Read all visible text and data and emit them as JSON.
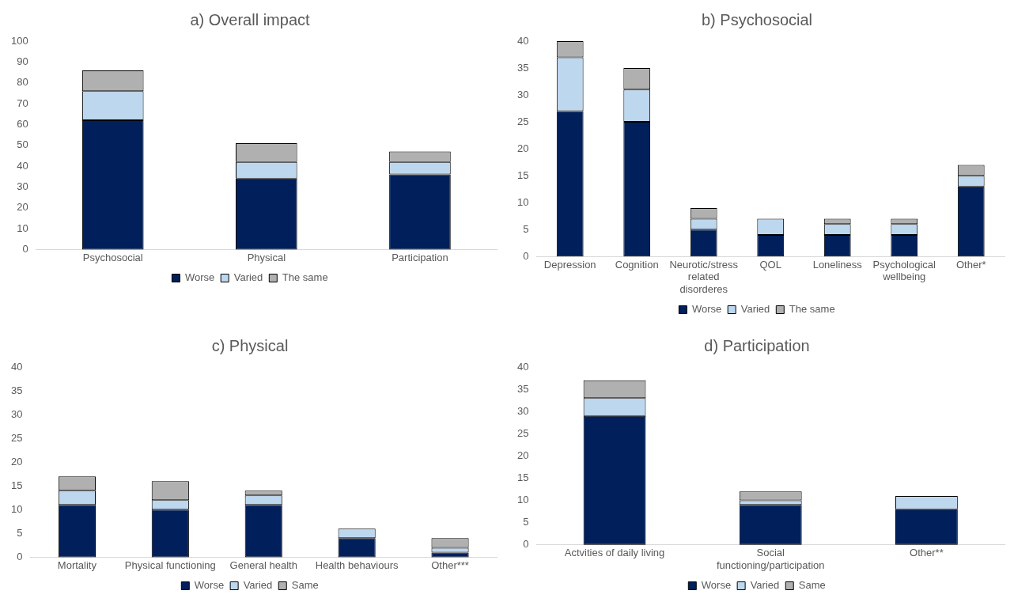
{
  "chart_data": [
    {
      "type": "bar",
      "title": "a) Overall impact",
      "categories": [
        "Psychosocial",
        "Physical",
        "Participation"
      ],
      "stacked": true,
      "grid": false,
      "legend": "bottom",
      "ylim": [
        0,
        100
      ],
      "yticks": [
        0,
        10,
        20,
        30,
        40,
        50,
        60,
        70,
        80,
        90,
        100
      ],
      "series": [
        {
          "name": "Worse",
          "color": "#001f5b",
          "values": [
            62,
            34,
            36
          ]
        },
        {
          "name": "Varied",
          "color": "#bdd7ee",
          "values": [
            14,
            8,
            6
          ]
        },
        {
          "name": "The same",
          "color": "#b0b0b0",
          "values": [
            10,
            9,
            5
          ]
        }
      ]
    },
    {
      "type": "bar",
      "title": "b) Psychosocial",
      "categories": [
        "Depression",
        "Cognition",
        "Neurotic/stress related disorderes",
        "QOL",
        "Loneliness",
        "Psychological wellbeing",
        "Other*"
      ],
      "stacked": true,
      "grid": false,
      "legend": "bottom",
      "ylim": [
        0,
        40
      ],
      "yticks": [
        0,
        5,
        10,
        15,
        20,
        25,
        30,
        35,
        40
      ],
      "series": [
        {
          "name": "Worse",
          "color": "#001f5b",
          "values": [
            27,
            25,
            5,
            4,
            4,
            4,
            13
          ]
        },
        {
          "name": "Varied",
          "color": "#bdd7ee",
          "values": [
            10,
            6,
            2,
            3,
            2,
            2,
            2
          ]
        },
        {
          "name": "The same",
          "color": "#b0b0b0",
          "values": [
            3,
            4,
            2,
            0,
            1,
            1,
            2
          ]
        }
      ]
    },
    {
      "type": "bar",
      "title": "c) Physical",
      "categories": [
        "Mortality",
        "Physical functioning",
        "General health",
        "Health behaviours",
        "Other***"
      ],
      "stacked": true,
      "grid": false,
      "legend": "bottom",
      "ylim": [
        0,
        40
      ],
      "yticks": [
        0,
        5,
        10,
        15,
        20,
        25,
        30,
        35,
        40
      ],
      "series": [
        {
          "name": "Worse",
          "color": "#001f5b",
          "values": [
            11,
            10,
            11,
            4,
            1
          ]
        },
        {
          "name": "Varied",
          "color": "#bdd7ee",
          "values": [
            3,
            2,
            2,
            2,
            1
          ]
        },
        {
          "name": "Same",
          "color": "#b0b0b0",
          "values": [
            3,
            4,
            1,
            0,
            2
          ]
        }
      ]
    },
    {
      "type": "bar",
      "title": "d) Participation",
      "categories": [
        "Actvities of daily living",
        "Social functioning/participation",
        "Other**"
      ],
      "stacked": true,
      "grid": false,
      "legend": "bottom",
      "ylim": [
        0,
        40
      ],
      "yticks": [
        0,
        5,
        10,
        15,
        20,
        25,
        30,
        35,
        40
      ],
      "series": [
        {
          "name": "Worse",
          "color": "#001f5b",
          "values": [
            29,
            9,
            8
          ]
        },
        {
          "name": "Varied",
          "color": "#bdd7ee",
          "values": [
            4,
            1,
            3
          ]
        },
        {
          "name": "Same",
          "color": "#b0b0b0",
          "values": [
            4,
            2,
            0
          ]
        }
      ]
    }
  ]
}
